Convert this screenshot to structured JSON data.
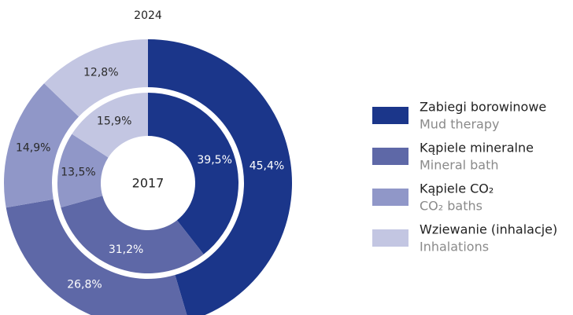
{
  "chart_data": {
    "type": "pie",
    "categories": [
      "Zabiegi borowinowe",
      "Kąpiele mineralne",
      "Kąpiele CO₂",
      "Wziewanie (inhalacje)"
    ],
    "category_translations": [
      "Mud therapy",
      "Mineral bath",
      "CO₂ baths",
      "Inhalations"
    ],
    "colors": [
      "#1b368a",
      "#5e68a7",
      "#9097c8",
      "#c3c6e2"
    ],
    "series": [
      {
        "name": "2024",
        "values": [
          45.4,
          26.8,
          14.9,
          12.8
        ],
        "value_labels": [
          "45,4%",
          "26,8%",
          "14,9%",
          "12,8%"
        ]
      },
      {
        "name": "2017",
        "values": [
          39.5,
          31.2,
          13.5,
          15.9
        ],
        "value_labels": [
          "39,5%",
          "31,2%",
          "13,5%",
          "15,9%"
        ]
      }
    ]
  }
}
